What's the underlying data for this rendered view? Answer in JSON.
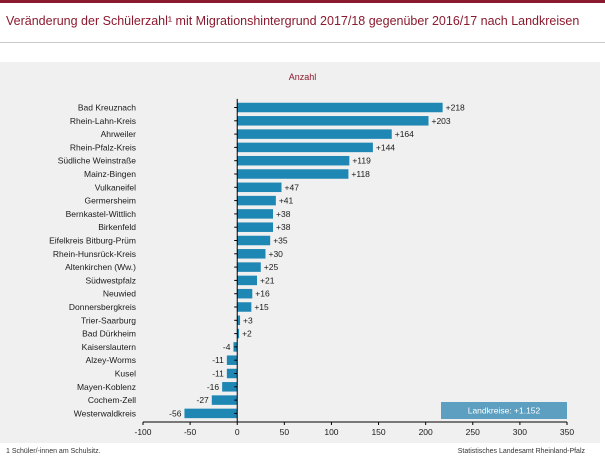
{
  "header": {
    "title": "Veränderung der Schülerzahl¹ mit Migrationshintergrund 2017/18 gegenüber 2016/17 nach Landkreisen"
  },
  "footer": {
    "footnote": "1 Schüler/-innen am Schulsitz.",
    "source": "Statistisches Landesamt Rheinland-Pfalz"
  },
  "colors": {
    "bar": "#1f87b4",
    "accent": "#8b1a2e",
    "total_box": "#5c9fc0",
    "panel": "#f0f0f0"
  },
  "chart_data": {
    "type": "bar",
    "orientation": "horizontal",
    "title": "Anzahl",
    "categories": [
      "Bad Kreuznach",
      "Rhein-Lahn-Kreis",
      "Ahrweiler",
      "Rhein-Pfalz-Kreis",
      "Südliche Weinstraße",
      "Mainz-Bingen",
      "Vulkaneifel",
      "Germersheim",
      "Bernkastel-Wittlich",
      "Birkenfeld",
      "Eifelkreis Bitburg-Prüm",
      "Rhein-Hunsrück-Kreis",
      "Altenkirchen (Ww.)",
      "Südwestpfalz",
      "Neuwied",
      "Donnersbergkreis",
      "Trier-Saarburg",
      "Bad Dürkheim",
      "Kaiserslautern",
      "Alzey-Worms",
      "Kusel",
      "Mayen-Koblenz",
      "Cochem-Zell",
      "Westerwaldkreis"
    ],
    "values": [
      218,
      203,
      164,
      144,
      119,
      118,
      47,
      41,
      38,
      38,
      35,
      30,
      25,
      21,
      16,
      15,
      3,
      2,
      -4,
      -11,
      -11,
      -16,
      -27,
      -56
    ],
    "value_labels": [
      "+218",
      "+203",
      "+164",
      "+144",
      "+119",
      "+118",
      "+47",
      "+41",
      "+38",
      "+38",
      "+35",
      "+30",
      "+25",
      "+21",
      "+16",
      "+15",
      "+3",
      "+2",
      "-4",
      "-11",
      "-11",
      "-16",
      "-27",
      "-56"
    ],
    "xlim": [
      -100,
      350
    ],
    "xticks": [
      -100,
      -50,
      0,
      50,
      100,
      150,
      200,
      250,
      300,
      350
    ],
    "grid": false,
    "annotation": "Landkreise: +1.152"
  }
}
